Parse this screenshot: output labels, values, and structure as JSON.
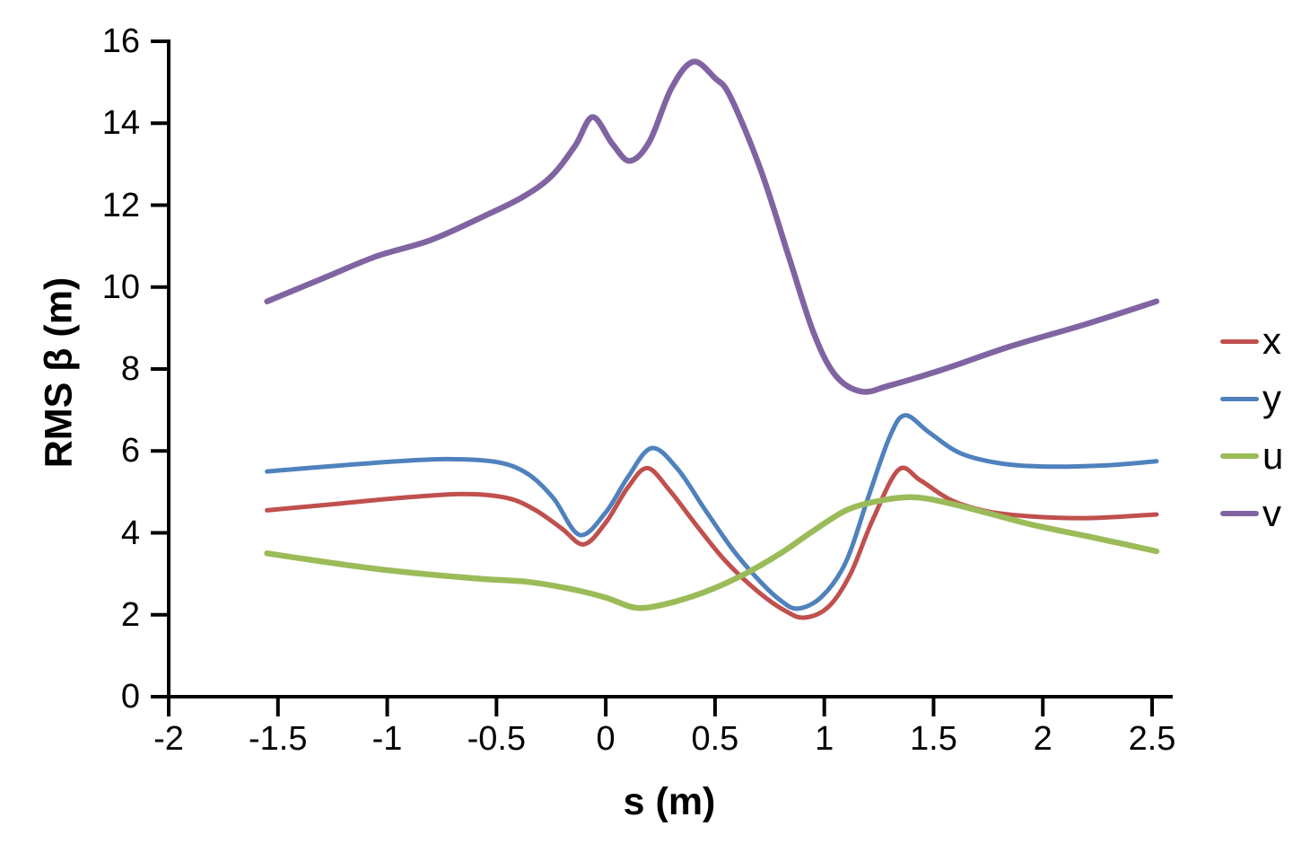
{
  "chart_data": {
    "type": "line",
    "title": "",
    "xlabel": "s (m)",
    "ylabel": "RMS β (m)",
    "xlim": [
      -2,
      2.6
    ],
    "ylim": [
      0,
      16
    ],
    "grid": false,
    "background": "#ffffff",
    "axis_color": "#000000",
    "xticks": {
      "values": [
        -2,
        -1.5,
        -1,
        -0.5,
        0,
        0.5,
        1,
        1.5,
        2,
        2.5
      ],
      "labels": [
        "-2",
        "-1.5",
        "-1",
        "-0.5",
        "0",
        "0.5",
        "1",
        "1.5",
        "2",
        "2.5"
      ]
    },
    "yticks": {
      "values": [
        0,
        2,
        4,
        6,
        8,
        10,
        12,
        14,
        16
      ],
      "labels": [
        "0",
        "2",
        "4",
        "6",
        "8",
        "10",
        "12",
        "14",
        "16"
      ]
    },
    "legend": {
      "position": "right",
      "entries": [
        "x",
        "y",
        "u",
        "v"
      ]
    },
    "series": [
      {
        "name": "x",
        "color": "#C0504D",
        "line_width": 5,
        "points": [
          [
            -1.55,
            4.55
          ],
          [
            -1.25,
            4.7
          ],
          [
            -0.95,
            4.85
          ],
          [
            -0.65,
            4.95
          ],
          [
            -0.45,
            4.85
          ],
          [
            -0.32,
            4.55
          ],
          [
            -0.2,
            4.1
          ],
          [
            -0.1,
            3.72
          ],
          [
            0.0,
            4.25
          ],
          [
            0.1,
            5.1
          ],
          [
            0.19,
            5.58
          ],
          [
            0.29,
            5.05
          ],
          [
            0.42,
            4.15
          ],
          [
            0.55,
            3.3
          ],
          [
            0.7,
            2.55
          ],
          [
            0.82,
            2.1
          ],
          [
            0.91,
            1.93
          ],
          [
            1.02,
            2.2
          ],
          [
            1.12,
            3.0
          ],
          [
            1.22,
            4.3
          ],
          [
            1.34,
            5.54
          ],
          [
            1.44,
            5.28
          ],
          [
            1.58,
            4.8
          ],
          [
            1.75,
            4.52
          ],
          [
            1.95,
            4.4
          ],
          [
            2.2,
            4.36
          ],
          [
            2.52,
            4.45
          ]
        ]
      },
      {
        "name": "y",
        "color": "#4F81BD",
        "line_width": 5,
        "points": [
          [
            -1.55,
            5.5
          ],
          [
            -1.25,
            5.63
          ],
          [
            -0.95,
            5.75
          ],
          [
            -0.72,
            5.8
          ],
          [
            -0.5,
            5.73
          ],
          [
            -0.36,
            5.45
          ],
          [
            -0.24,
            4.85
          ],
          [
            -0.12,
            3.95
          ],
          [
            0.0,
            4.5
          ],
          [
            0.1,
            5.35
          ],
          [
            0.21,
            6.07
          ],
          [
            0.33,
            5.55
          ],
          [
            0.45,
            4.6
          ],
          [
            0.58,
            3.6
          ],
          [
            0.7,
            2.85
          ],
          [
            0.8,
            2.35
          ],
          [
            0.88,
            2.15
          ],
          [
            0.99,
            2.45
          ],
          [
            1.1,
            3.3
          ],
          [
            1.2,
            4.85
          ],
          [
            1.3,
            6.35
          ],
          [
            1.37,
            6.87
          ],
          [
            1.48,
            6.45
          ],
          [
            1.62,
            5.95
          ],
          [
            1.8,
            5.7
          ],
          [
            2.0,
            5.62
          ],
          [
            2.3,
            5.65
          ],
          [
            2.52,
            5.75
          ]
        ]
      },
      {
        "name": "u",
        "color": "#9BBB59",
        "line_width": 6.5,
        "points": [
          [
            -1.55,
            3.5
          ],
          [
            -1.3,
            3.3
          ],
          [
            -1.05,
            3.12
          ],
          [
            -0.8,
            2.98
          ],
          [
            -0.55,
            2.87
          ],
          [
            -0.35,
            2.8
          ],
          [
            -0.15,
            2.62
          ],
          [
            0.0,
            2.42
          ],
          [
            0.14,
            2.17
          ],
          [
            0.28,
            2.27
          ],
          [
            0.45,
            2.55
          ],
          [
            0.62,
            2.95
          ],
          [
            0.8,
            3.5
          ],
          [
            0.95,
            4.05
          ],
          [
            1.1,
            4.55
          ],
          [
            1.25,
            4.78
          ],
          [
            1.4,
            4.87
          ],
          [
            1.55,
            4.75
          ],
          [
            1.75,
            4.48
          ],
          [
            1.95,
            4.2
          ],
          [
            2.2,
            3.92
          ],
          [
            2.35,
            3.75
          ],
          [
            2.52,
            3.55
          ]
        ]
      },
      {
        "name": "v",
        "color": "#8064A2",
        "line_width": 6.5,
        "points": [
          [
            -1.55,
            9.65
          ],
          [
            -1.3,
            10.2
          ],
          [
            -1.05,
            10.75
          ],
          [
            -0.8,
            11.15
          ],
          [
            -0.55,
            11.75
          ],
          [
            -0.38,
            12.2
          ],
          [
            -0.25,
            12.7
          ],
          [
            -0.14,
            13.45
          ],
          [
            -0.06,
            14.15
          ],
          [
            0.03,
            13.5
          ],
          [
            0.11,
            13.08
          ],
          [
            0.2,
            13.55
          ],
          [
            0.3,
            14.85
          ],
          [
            0.4,
            15.5
          ],
          [
            0.5,
            15.1
          ],
          [
            0.57,
            14.65
          ],
          [
            0.71,
            12.85
          ],
          [
            0.84,
            10.7
          ],
          [
            0.95,
            8.9
          ],
          [
            1.05,
            7.85
          ],
          [
            1.17,
            7.45
          ],
          [
            1.3,
            7.6
          ],
          [
            1.55,
            8.0
          ],
          [
            1.85,
            8.55
          ],
          [
            2.2,
            9.1
          ],
          [
            2.52,
            9.65
          ]
        ]
      }
    ]
  }
}
